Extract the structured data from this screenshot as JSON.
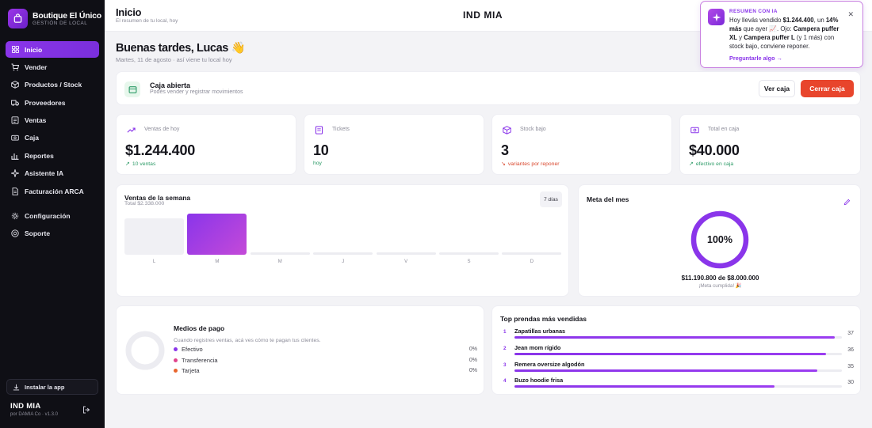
{
  "brand": {
    "name": "Boutique El Único",
    "subtitle": "GESTIÓN DE LOCAL"
  },
  "nav": {
    "items": [
      {
        "label": "Inicio",
        "icon": "grid-icon",
        "active": true
      },
      {
        "label": "Vender",
        "icon": "cart-icon"
      },
      {
        "label": "Productos / Stock",
        "icon": "box-icon"
      },
      {
        "label": "Proveedores",
        "icon": "truck-icon"
      },
      {
        "label": "Ventas",
        "icon": "list-icon"
      },
      {
        "label": "Caja",
        "icon": "cash-icon"
      },
      {
        "label": "Reportes",
        "icon": "chart-icon"
      },
      {
        "label": "Asistente IA",
        "icon": "sparkle-icon"
      },
      {
        "label": "Facturación ARCA",
        "icon": "invoice-icon"
      }
    ],
    "secondary": [
      {
        "label": "Configuración",
        "icon": "gear-icon"
      },
      {
        "label": "Soporte",
        "icon": "help-icon"
      }
    ],
    "install_label": "Instalar la app",
    "footer_logo": "IND MIA",
    "footer_version": "por DAMIA Co · v1.3.0"
  },
  "header": {
    "title": "Inicio",
    "subtitle": "El resumen de tu local, hoy",
    "logo": "IND MIA"
  },
  "ai_summary": {
    "heading": "RESUMEN CON IA",
    "text_1": "Hoy llevás vendido ",
    "amount": "$1.244.400",
    "text_2": ", un ",
    "pct": "14% más",
    "text_3": " que ayer 📈. Ojo: ",
    "item_1": "Campera puffer XL",
    "text_4": " y ",
    "item_2": "Campera puffer L",
    "text_5": " (y 1 más) con stock bajo, conviene reponer.",
    "link": "Preguntarle algo →",
    "close": "✕"
  },
  "greeting": {
    "title": "Buenas tardes, Lucas 👋",
    "subtitle": "Martes, 11 de agosto · así viene tu local hoy"
  },
  "caja": {
    "title": "Caja abierta",
    "subtitle": "Podés vender y registrar movimientos",
    "ver_label": "Ver caja",
    "cerrar_label": "Cerrar caja"
  },
  "stats": [
    {
      "label": "Ventas de hoy",
      "value": "$1.244.400",
      "note": "10 ventas",
      "trend": "up",
      "icon": "trend-icon"
    },
    {
      "label": "Tickets",
      "value": "10",
      "note": "hoy",
      "trend": "up",
      "icon": "ticket-icon"
    },
    {
      "label": "Stock bajo",
      "value": "3",
      "note": "variantes por reponer",
      "trend": "down",
      "icon": "box-icon"
    },
    {
      "label": "Total en caja",
      "value": "$40.000",
      "note": "efectivo en caja",
      "trend": "up",
      "icon": "cash-icon"
    }
  ],
  "week": {
    "title": "Ventas de la semana",
    "subtitle": "Total $2.338.000",
    "range": "7 días"
  },
  "chart_data": {
    "type": "bar",
    "categories": [
      "L",
      "M",
      "M",
      "J",
      "V",
      "S",
      "D"
    ],
    "values": [
      1094000,
      1244000,
      0,
      0,
      0,
      0,
      0
    ],
    "ylim": [
      0,
      1244000
    ],
    "highlight": 1
  },
  "meta": {
    "title": "Meta del mes",
    "percent_value": 100,
    "percent": "100%",
    "amount": "$11.190.800 de $8.000.000",
    "status": "¡Meta cumplida! 🎉"
  },
  "payments": {
    "title": "Medios de pago",
    "subtitle": "Cuando registres ventas, acá ves cómo te pagan tus clientes.",
    "methods": [
      {
        "name": "Efectivo",
        "pct": "0%",
        "color": "#8a35ea"
      },
      {
        "name": "Transferencia",
        "pct": "0%",
        "color": "#e0448c"
      },
      {
        "name": "Tarjeta",
        "pct": "0%",
        "color": "#e8652c"
      }
    ]
  },
  "top_products": {
    "title": "Top prendas más vendidas",
    "items": [
      {
        "rank": "1",
        "name": "Zapatillas urbanas",
        "count": 37
      },
      {
        "rank": "2",
        "name": "Jean mom rígido",
        "count": 36
      },
      {
        "rank": "3",
        "name": "Remera oversize algodón",
        "count": 35
      },
      {
        "rank": "4",
        "name": "Buzo hoodie frisa",
        "count": 30
      }
    ]
  }
}
